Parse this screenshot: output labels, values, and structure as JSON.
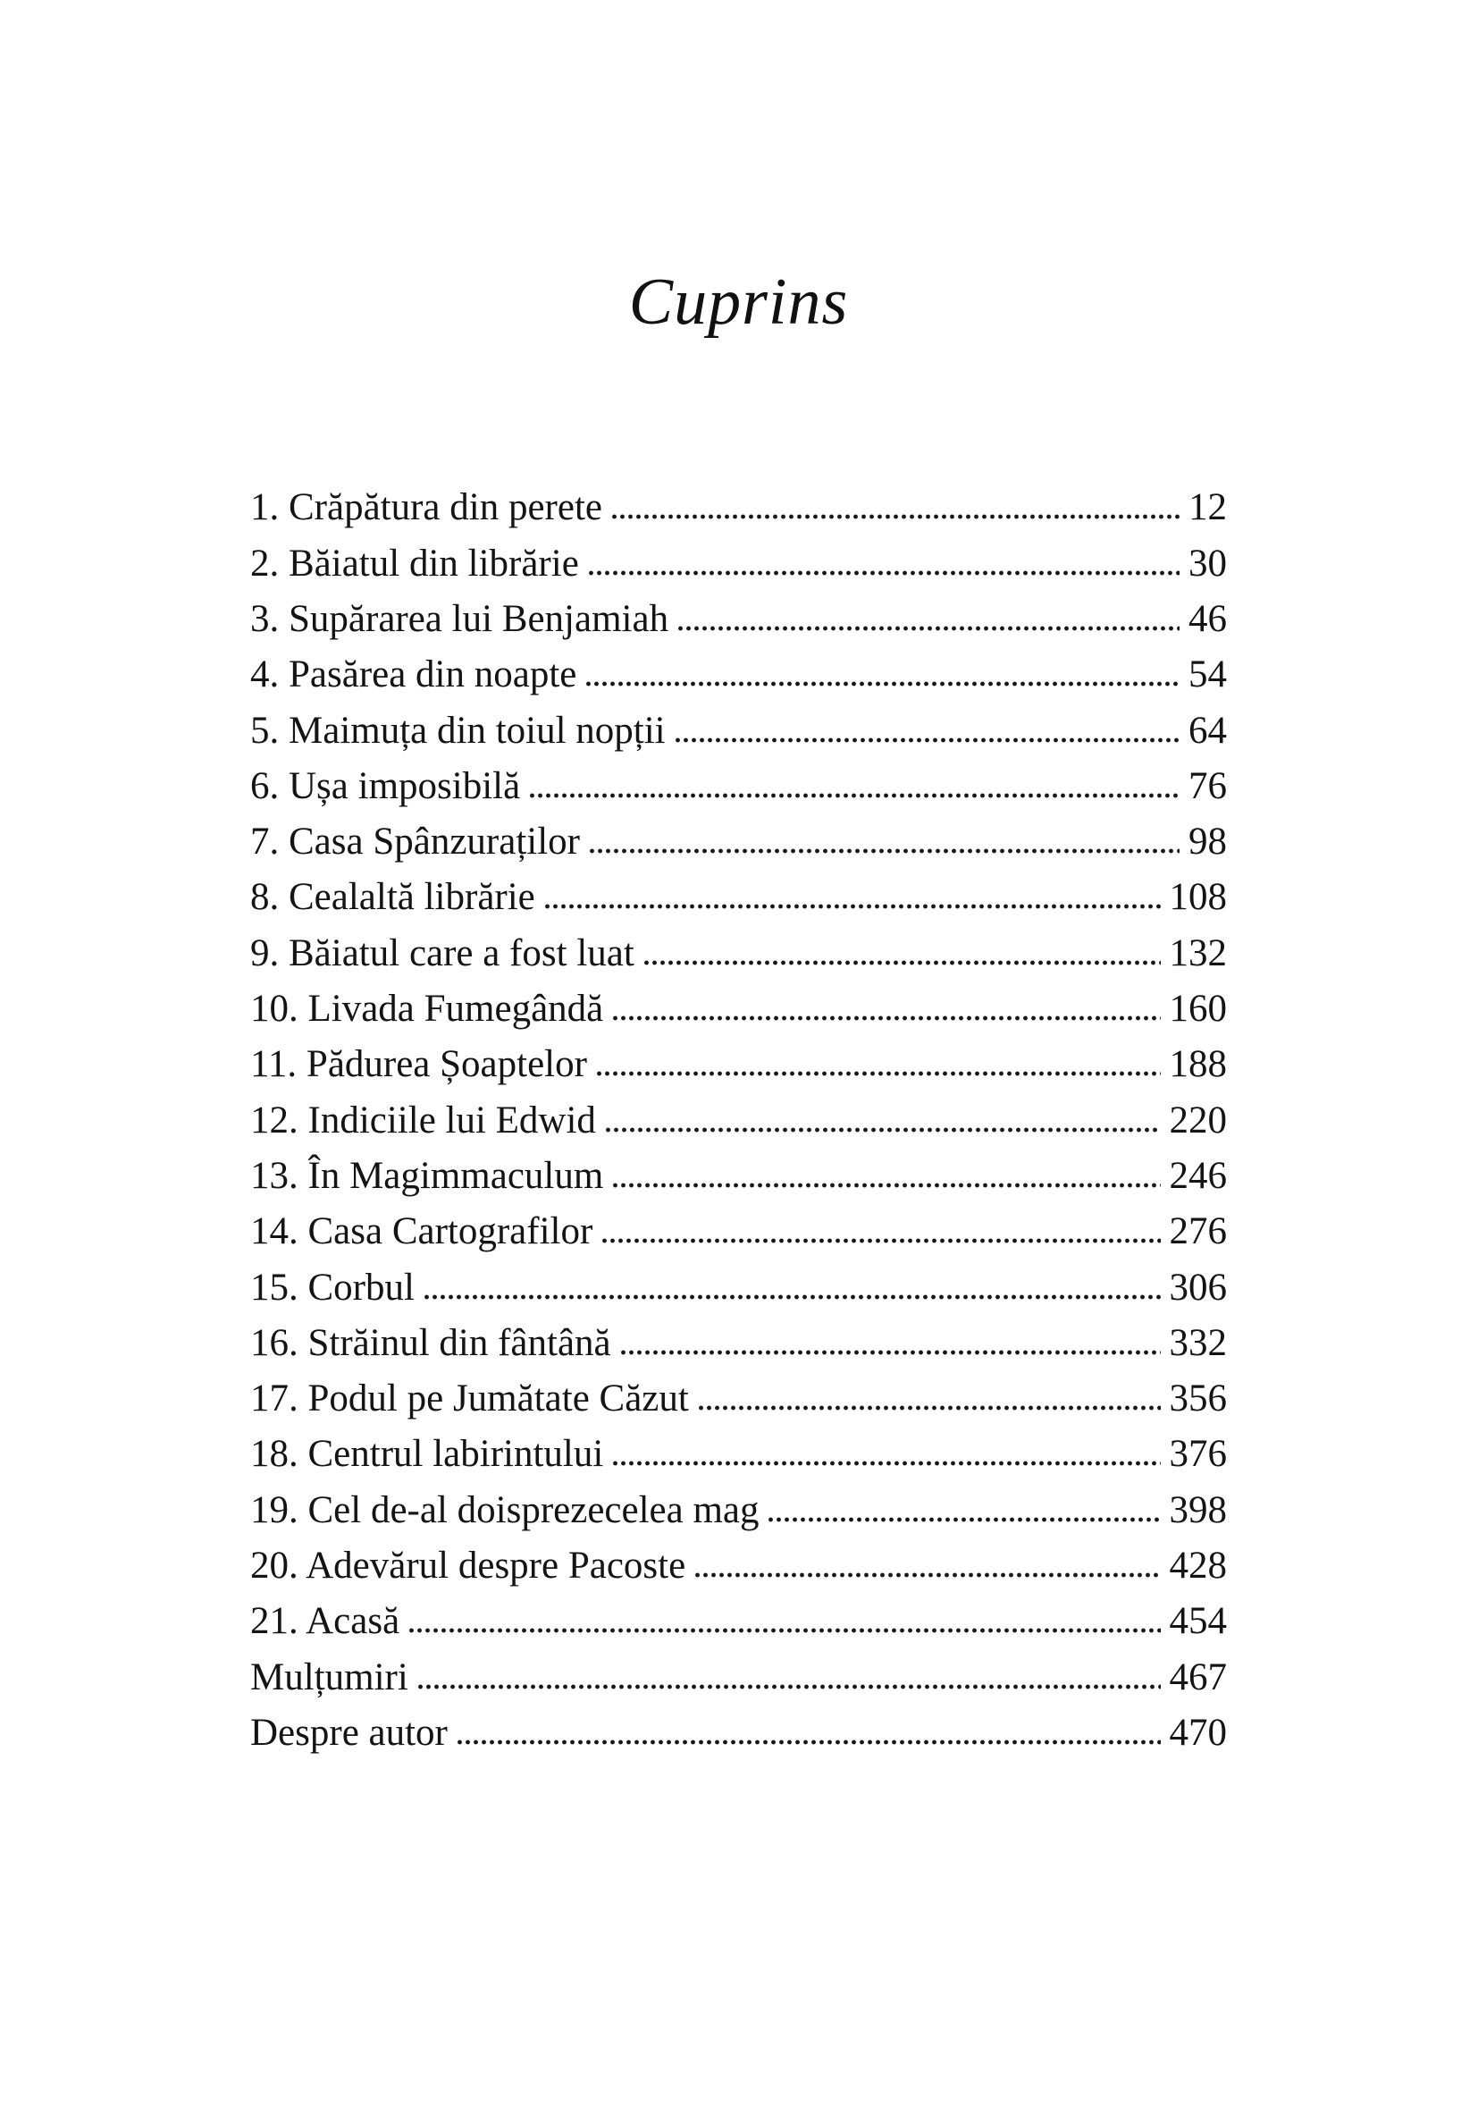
{
  "page": {
    "title": "Cuprins"
  },
  "toc": {
    "entries": [
      {
        "label": "1. Crăpătura din perete",
        "page": "12"
      },
      {
        "label": "2. Băiatul din librărie",
        "page": "30"
      },
      {
        "label": "3. Supărarea lui Benjamiah",
        "page": "46"
      },
      {
        "label": "4. Pasărea din noapte",
        "page": "54"
      },
      {
        "label": "5. Maimuța din toiul nopții",
        "page": "64"
      },
      {
        "label": "6. Ușa imposibilă",
        "page": "76"
      },
      {
        "label": "7. Casa Spânzuraților",
        "page": "98"
      },
      {
        "label": "8. Cealaltă librărie",
        "page": "108"
      },
      {
        "label": "9. Băiatul care a fost luat",
        "page": "132"
      },
      {
        "label": "10. Livada Fumegândă",
        "page": "160"
      },
      {
        "label": "11. Pădurea Șoaptelor",
        "page": "188"
      },
      {
        "label": "12. Indiciile lui Edwid",
        "page": "220"
      },
      {
        "label": "13. În Magimmaculum",
        "page": "246"
      },
      {
        "label": "14. Casa Cartografilor",
        "page": "276"
      },
      {
        "label": "15. Corbul",
        "page": "306"
      },
      {
        "label": "16. Străinul din fântână",
        "page": "332"
      },
      {
        "label": "17. Podul pe Jumătate Căzut",
        "page": "356"
      },
      {
        "label": "18. Centrul labirintului",
        "page": "376"
      },
      {
        "label": "19. Cel de-al doisprezecelea mag",
        "page": "398"
      },
      {
        "label": "20. Adevărul despre Pacoste",
        "page": "428"
      },
      {
        "label": "21. Acasă",
        "page": "454"
      },
      {
        "label": "Mulțumiri",
        "page": "467"
      },
      {
        "label": "Despre autor",
        "page": "470"
      }
    ]
  }
}
